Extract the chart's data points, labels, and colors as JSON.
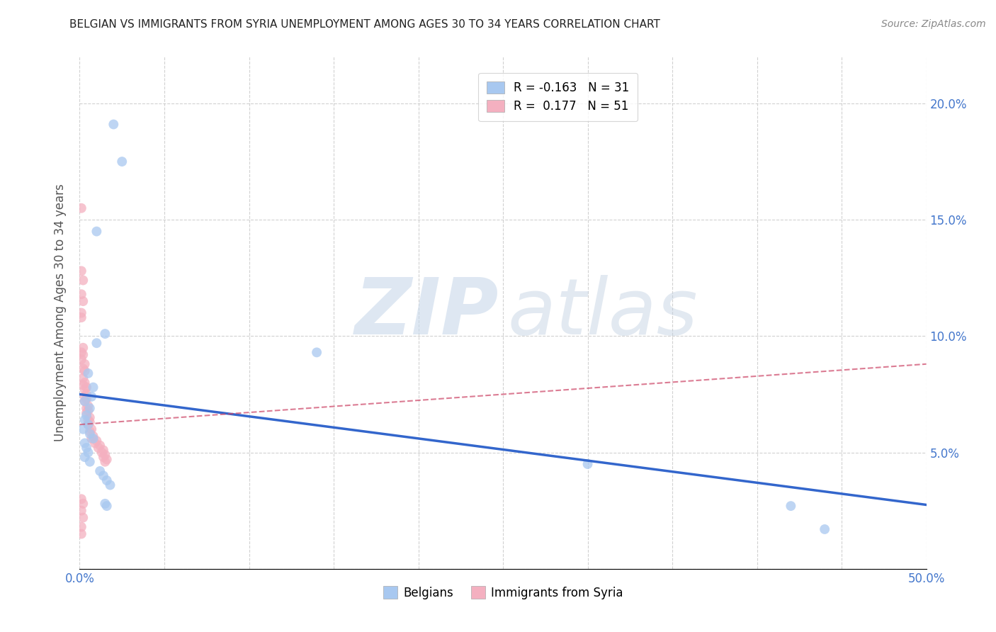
{
  "title": "BELGIAN VS IMMIGRANTS FROM SYRIA UNEMPLOYMENT AMONG AGES 30 TO 34 YEARS CORRELATION CHART",
  "source": "Source: ZipAtlas.com",
  "ylabel": "Unemployment Among Ages 30 to 34 years",
  "xlim": [
    0,
    0.5
  ],
  "ylim": [
    0,
    0.22
  ],
  "xticks": [
    0.0,
    0.05,
    0.1,
    0.15,
    0.2,
    0.25,
    0.3,
    0.35,
    0.4,
    0.45,
    0.5
  ],
  "xtick_labels_show": [
    "0.0%",
    "50.0%"
  ],
  "yticks": [
    0.0,
    0.05,
    0.1,
    0.15,
    0.2
  ],
  "ytick_labels": [
    "",
    "5.0%",
    "10.0%",
    "15.0%",
    "20.0%"
  ],
  "legend_r_blue": "R = -0.163",
  "legend_n_blue": "N = 31",
  "legend_r_pink": "R =  0.177",
  "legend_n_pink": "N = 51",
  "legend_label_blue": "Belgians",
  "legend_label_pink": "Immigrants from Syria",
  "blue_color": "#a8c8f0",
  "pink_color": "#f4b0c0",
  "blue_line_color": "#3366cc",
  "pink_line_color": "#cc4466",
  "blue_line_intercept": 0.075,
  "blue_line_slope": -0.095,
  "pink_line_intercept": 0.062,
  "pink_line_slope": 0.052,
  "blue_x_pts": [
    0.02,
    0.025,
    0.01,
    0.015,
    0.01,
    0.005,
    0.008,
    0.007,
    0.003,
    0.006,
    0.004,
    0.003,
    0.005,
    0.002,
    0.006,
    0.008,
    0.003,
    0.004,
    0.005,
    0.003,
    0.006,
    0.012,
    0.014,
    0.016,
    0.018,
    0.015,
    0.016,
    0.14,
    0.3,
    0.42,
    0.44
  ],
  "blue_y_pts": [
    0.191,
    0.175,
    0.145,
    0.101,
    0.097,
    0.084,
    0.078,
    0.074,
    0.072,
    0.069,
    0.066,
    0.064,
    0.062,
    0.06,
    0.058,
    0.056,
    0.054,
    0.052,
    0.05,
    0.048,
    0.046,
    0.042,
    0.04,
    0.038,
    0.036,
    0.028,
    0.027,
    0.093,
    0.045,
    0.027,
    0.017
  ],
  "pink_x_pts": [
    0.001,
    0.001,
    0.002,
    0.001,
    0.002,
    0.001,
    0.001,
    0.002,
    0.001,
    0.002,
    0.001,
    0.003,
    0.002,
    0.003,
    0.002,
    0.003,
    0.002,
    0.004,
    0.003,
    0.004,
    0.003,
    0.004,
    0.003,
    0.005,
    0.004,
    0.005,
    0.004,
    0.006,
    0.005,
    0.006,
    0.005,
    0.007,
    0.006,
    0.008,
    0.007,
    0.01,
    0.009,
    0.012,
    0.011,
    0.014,
    0.013,
    0.015,
    0.014,
    0.016,
    0.015,
    0.001,
    0.002,
    0.001,
    0.002,
    0.001,
    0.001
  ],
  "pink_y_pts": [
    0.155,
    0.128,
    0.124,
    0.118,
    0.115,
    0.11,
    0.108,
    0.095,
    0.093,
    0.092,
    0.09,
    0.088,
    0.086,
    0.085,
    0.082,
    0.08,
    0.079,
    0.078,
    0.077,
    0.075,
    0.074,
    0.073,
    0.072,
    0.07,
    0.069,
    0.068,
    0.067,
    0.065,
    0.064,
    0.063,
    0.062,
    0.06,
    0.059,
    0.057,
    0.056,
    0.055,
    0.054,
    0.053,
    0.052,
    0.051,
    0.05,
    0.049,
    0.048,
    0.047,
    0.046,
    0.03,
    0.028,
    0.025,
    0.022,
    0.018,
    0.015
  ]
}
